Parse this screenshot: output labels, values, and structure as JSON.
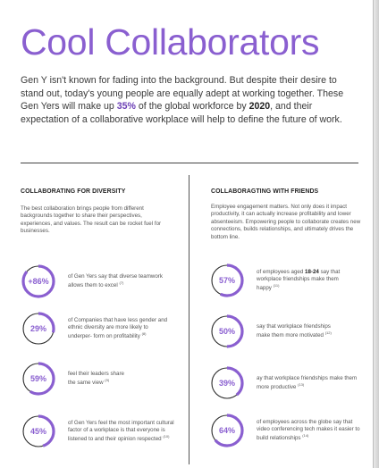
{
  "title": "Cool Collaborators",
  "intro": {
    "p1": "Gen Y isn't known for fading into the background. But despite their desire to stand out, today's young people are equally adept at working together. These Gen Yers will make up ",
    "highlight": "35%",
    "p2": " of the global workforce by ",
    "year": "2020",
    "p3": ", and their expectation of a collaborative workplace will help to define the future of work."
  },
  "colors": {
    "accent": "#8a5fd0",
    "ring_track": "#2b2b2b"
  },
  "left": {
    "heading": "COLLABORATING FOR DIVERSITY",
    "desc": "The best collaboration brings people from different backgrounds together to share  their perspectives, experiences, and values. The result can be rocket fuel for businesses.",
    "stats": [
      {
        "value": "+86%",
        "percent": 86,
        "text": "of Gen Yers say that diverse teamwork allows them to excel",
        "ref": "(7)"
      },
      {
        "value": "29%",
        "percent": 29,
        "text": "of Companies that have less gender and ethnic diversity are more likely to underper- form on profitability",
        "ref": "(8)"
      },
      {
        "value": "59%",
        "percent": 59,
        "text": "feel their leaders share the same view",
        "ref": "(9)"
      },
      {
        "value": "45%",
        "percent": 45,
        "text": "of Gen Yers feel the most important cultural factor of a workplace is that everyone is listened to and their opinion respected",
        "ref": "(10)"
      }
    ]
  },
  "right": {
    "heading": "COLLABORAGTING WITH FRIENDS",
    "desc": "Employee engagement matters. Not only does it impact productivity, it can actually increase profitability and lower absenteeism. Empowering people to collaborate creates new connections, builds relationships, and ultimately drives the bottom line.",
    "stats": [
      {
        "value": "57%",
        "percent": 57,
        "pre": "of employees aged ",
        "bold": "18-24",
        "text": " say that workplace friendships make them happy",
        "ref": "(11)"
      },
      {
        "value": "50%",
        "percent": 50,
        "text": "say that workplace friendships make them more motivated",
        "ref": "(12)"
      },
      {
        "value": "39%",
        "percent": 39,
        "text": "ay that workplace friendships make them more productive",
        "ref": "(13)"
      },
      {
        "value": "64%",
        "percent": 64,
        "text": "of employees across the globe say that video conferencing tech makes it easier to build relationships",
        "ref": "(14)"
      }
    ]
  }
}
